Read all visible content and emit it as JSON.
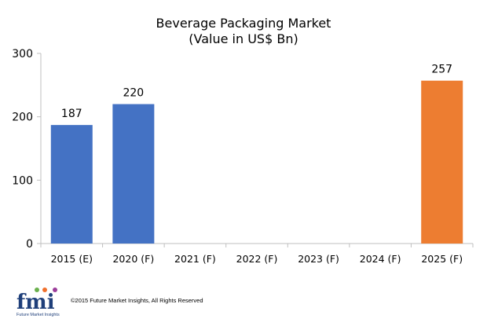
{
  "chart_data": {
    "type": "bar",
    "title": "Beverage Packaging Market",
    "subtitle": "(Value in US$ Bn)",
    "categories": [
      "2015 (E)",
      "2020 (F)",
      "2021 (F)",
      "2022 (F)",
      "2023 (F)",
      "2024 (F)",
      "2025 (F)"
    ],
    "values": [
      187,
      220,
      null,
      null,
      null,
      null,
      257
    ],
    "bar_colors": [
      "#4472C4",
      "#4472C4",
      null,
      null,
      null,
      null,
      "#ED7D31"
    ],
    "ylim": [
      0,
      300
    ],
    "yticks": [
      0,
      100,
      200,
      300
    ],
    "xlabel": "",
    "ylabel": "",
    "grid": false,
    "data_labels": true
  },
  "footer": {
    "logo_text": "fmi",
    "logo_subtext": "Future Market Insights",
    "copyright": "©2015 Future Market Insights, All Rights Reserved"
  }
}
